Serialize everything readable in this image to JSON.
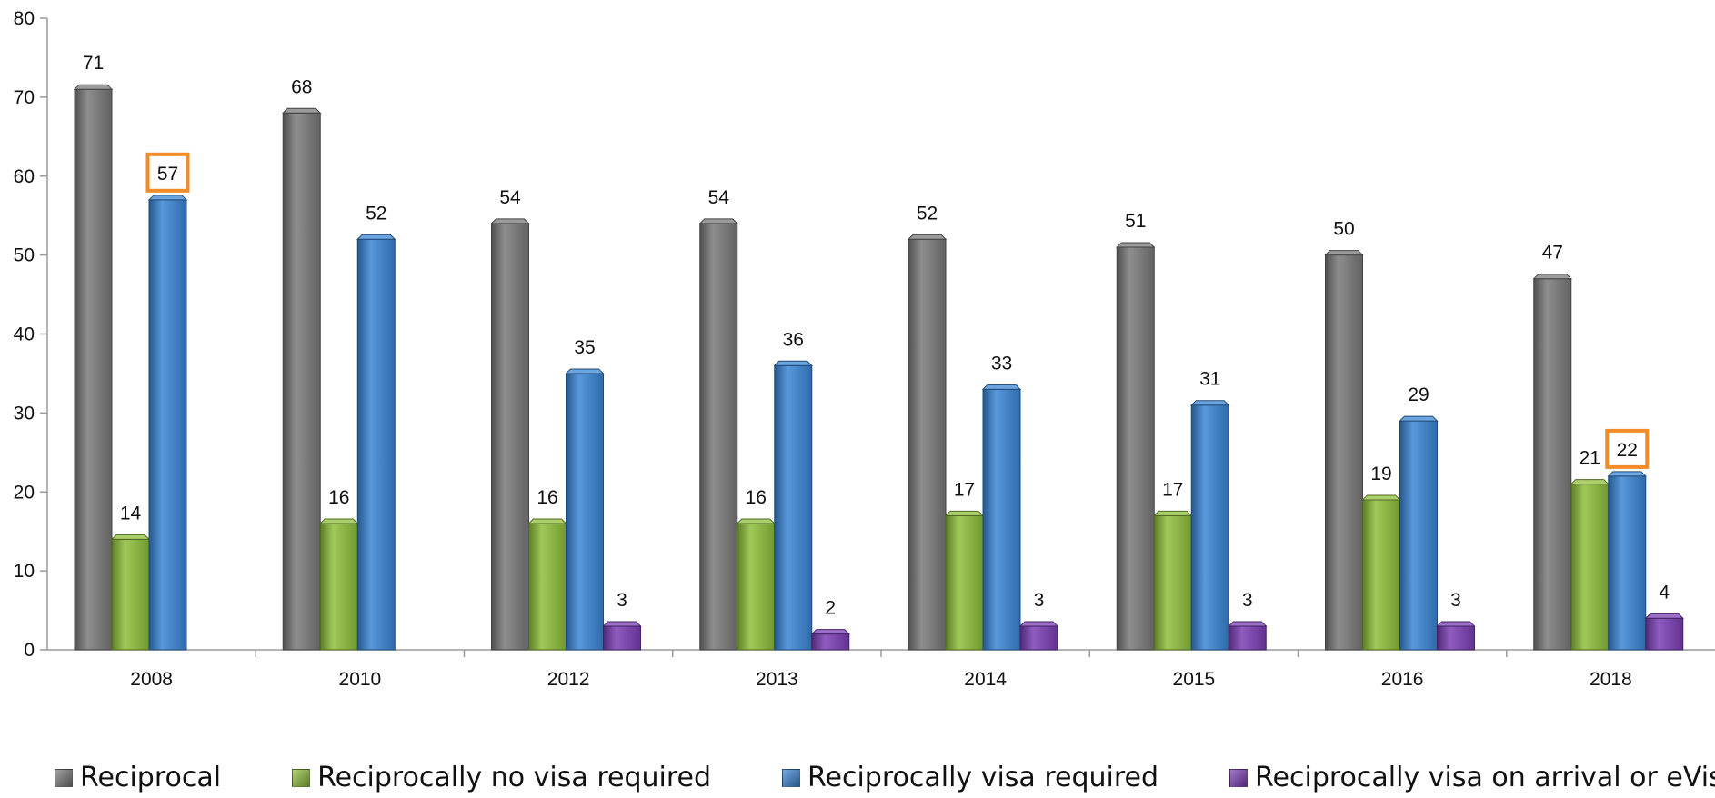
{
  "chart_data": {
    "type": "bar",
    "categories": [
      "2008",
      "2010",
      "2012",
      "2013",
      "2014",
      "2015",
      "2016",
      "2018"
    ],
    "series": [
      {
        "name": "Reciprocal",
        "color": "#7a7a7a",
        "values": [
          71,
          68,
          54,
          54,
          52,
          51,
          50,
          47
        ]
      },
      {
        "name": "Reciprocally no visa required",
        "color": "#8fbf3a",
        "values": [
          14,
          16,
          16,
          16,
          17,
          17,
          19,
          21
        ]
      },
      {
        "name": "Reciprocally visa required",
        "color": "#3b86d6",
        "values": [
          57,
          52,
          35,
          36,
          33,
          31,
          29,
          22
        ]
      },
      {
        "name": "Reciprocally visa on arrival or eVisa",
        "color": "#7b3fb5",
        "values": [
          null,
          null,
          3,
          2,
          3,
          3,
          3,
          4
        ]
      }
    ],
    "ylim": [
      0,
      80
    ],
    "yticks": [
      0,
      10,
      20,
      30,
      40,
      50,
      60,
      70,
      80
    ],
    "grid": false,
    "legend_position": "bottom",
    "highlighted_labels": [
      {
        "series": "Reciprocally visa required",
        "category": "2008",
        "value": 57
      },
      {
        "series": "Reciprocally visa required",
        "category": "2018",
        "value": 22
      }
    ],
    "highlight_color": "#f28c28"
  }
}
